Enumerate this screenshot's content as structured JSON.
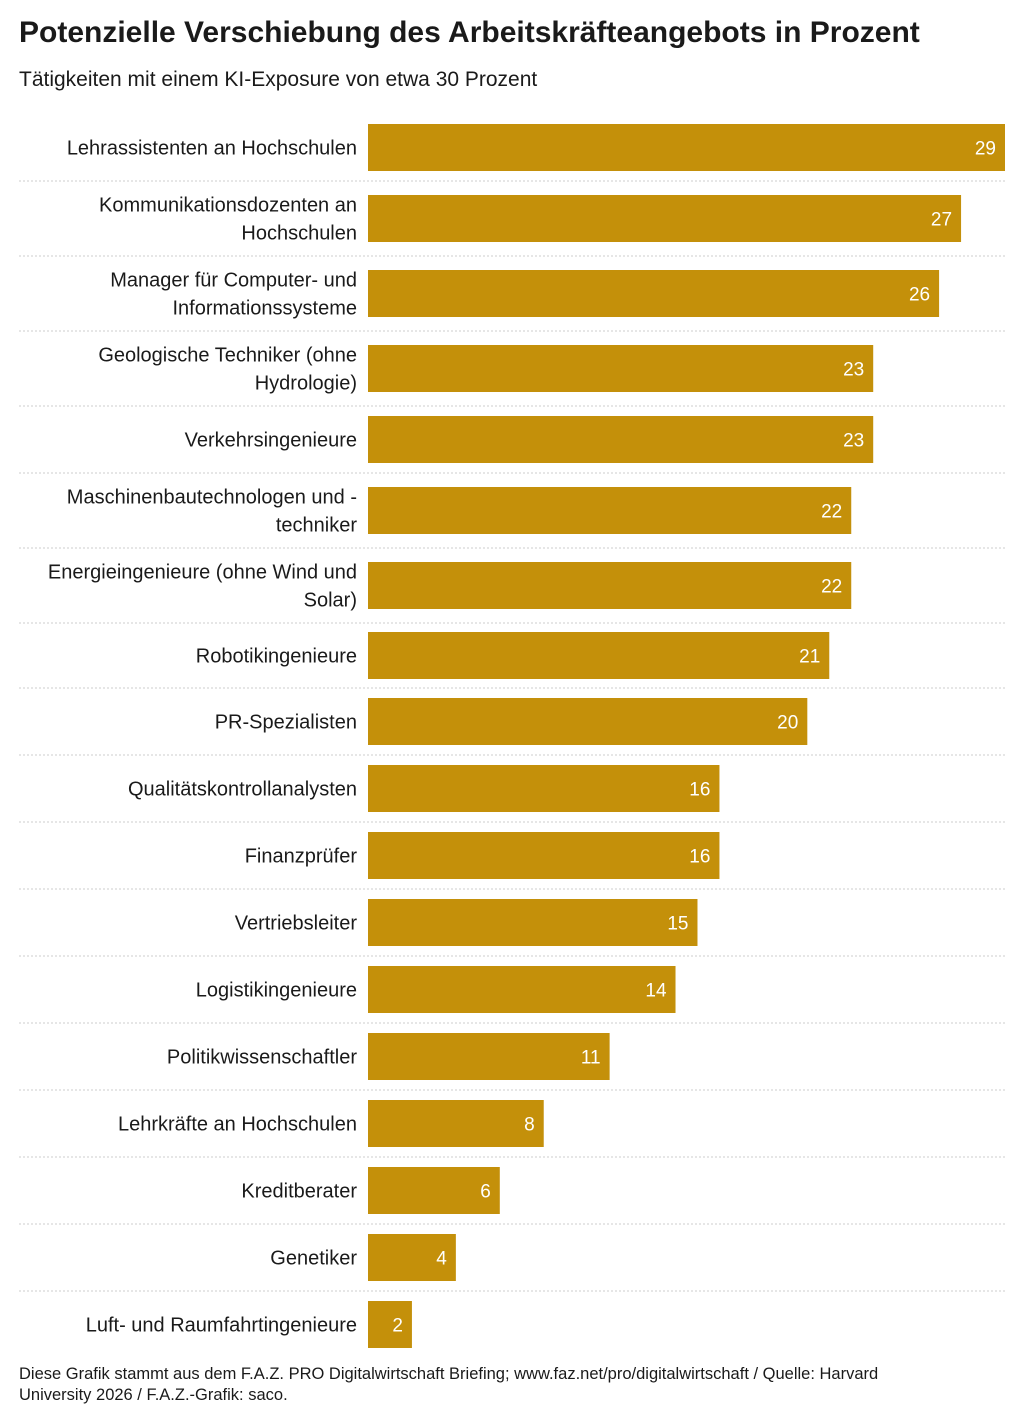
{
  "title": "Potenzielle Verschiebung des Arbeitskräfteangebots in Prozent",
  "subtitle": "Tätigkeiten mit einem KI-Exposure von etwa 30 Prozent",
  "footer": {
    "line1": "Diese Grafik stammt aus dem F.A.Z. PRO Digitalwirtschaft Briefing; www.faz.net/pro/digitalwirtschaft  /  Quelle: Harvard",
    "line2": "University 2026  /  F.A.Z.-Grafik: saco."
  },
  "colors": {
    "bar": "#c4900a",
    "value_text": "#ffffff",
    "separator": "#cccccc"
  },
  "chart_data": {
    "type": "bar",
    "orientation": "horizontal",
    "categories": [
      [
        "Lehrassistenten an Hochschulen"
      ],
      [
        "Kommunikationsdozenten an",
        "Hochschulen"
      ],
      [
        "Manager für Computer- und",
        "Informationssysteme"
      ],
      [
        "Geologische Techniker (ohne",
        "Hydrologie)"
      ],
      [
        "Verkehrsingenieure"
      ],
      [
        "Maschinenbautechnologen und -",
        "techniker"
      ],
      [
        "Energieingenieure (ohne Wind und",
        "Solar)"
      ],
      [
        "Robotikingenieure"
      ],
      [
        "PR-Spezialisten"
      ],
      [
        "Qualitätskontrollanalysten"
      ],
      [
        "Finanzprüfer"
      ],
      [
        "Vertriebsleiter"
      ],
      [
        "Logistikingenieure"
      ],
      [
        "Politikwissenschaftler"
      ],
      [
        "Lehrkräfte an Hochschulen"
      ],
      [
        "Kreditberater"
      ],
      [
        "Genetiker"
      ],
      [
        "Luft- und Raumfahrtingenieure"
      ]
    ],
    "values": [
      29,
      27,
      26,
      23,
      23,
      22,
      22,
      21,
      20,
      16,
      16,
      15,
      14,
      11,
      8,
      6,
      4,
      2
    ],
    "value_labels": [
      "29",
      "27",
      "26",
      "23",
      "23",
      "22",
      "22",
      "21",
      "20",
      "16",
      "16",
      "15",
      "14",
      "11",
      "8",
      "6",
      "4",
      "2"
    ],
    "xlim": [
      0,
      29
    ],
    "grid": false,
    "legend": "none"
  }
}
